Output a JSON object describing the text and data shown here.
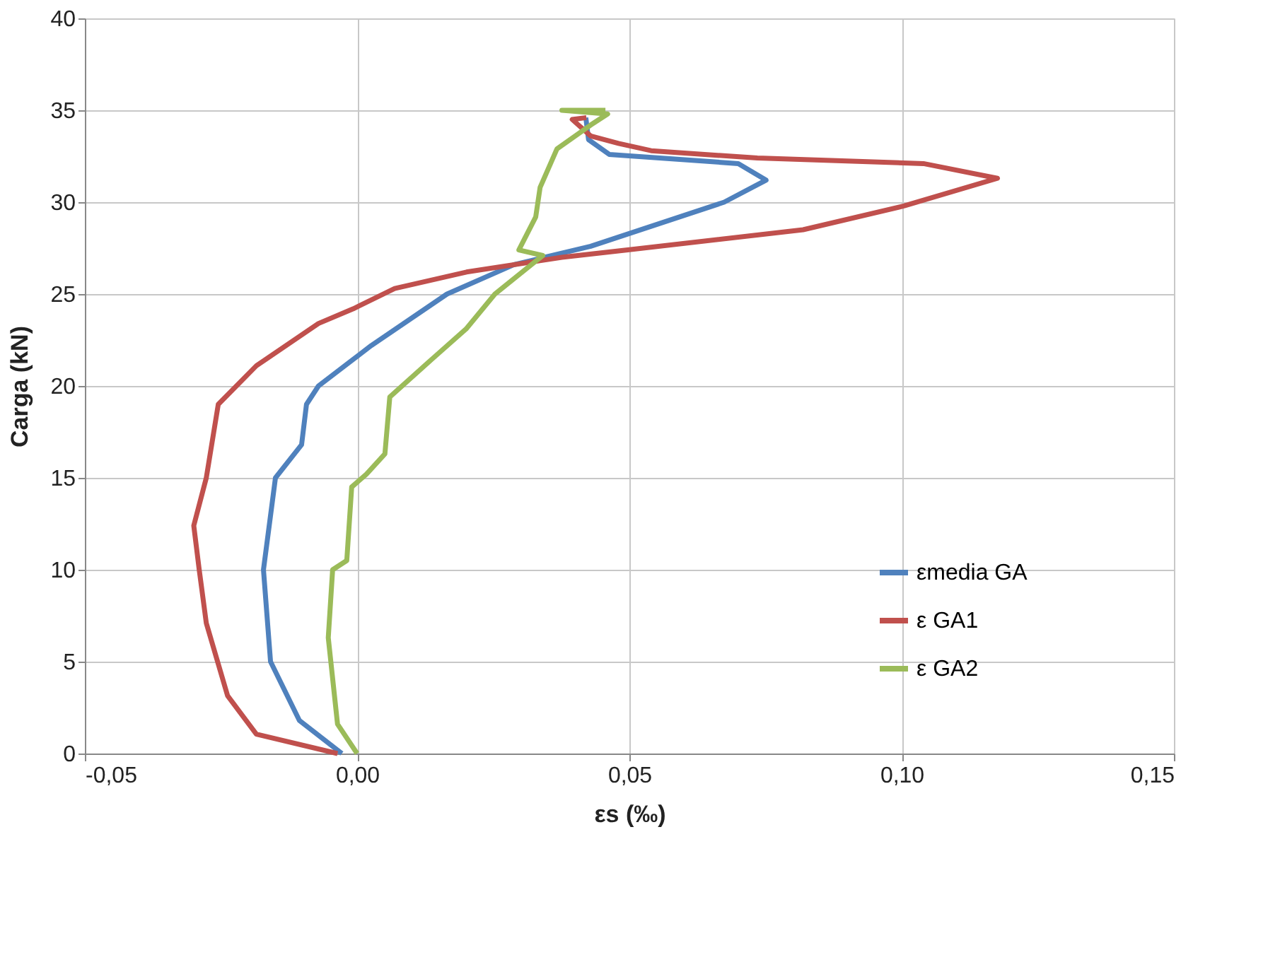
{
  "chart_data": {
    "type": "line",
    "xlabel": "εs  (‰)",
    "ylabel": "Carga (kN)",
    "xlim": [
      -0.05,
      0.15
    ],
    "xticks": [
      {
        "value": -0.05,
        "label": "-0,05"
      },
      {
        "value": 0,
        "label": "0,00"
      },
      {
        "value": 0.05,
        "label": "0,05"
      },
      {
        "value": 0.1,
        "label": "0,10"
      },
      {
        "value": 0.15,
        "label": "0,15"
      }
    ],
    "ylim": [
      0,
      40
    ],
    "yticks": [
      0,
      5,
      10,
      15,
      20,
      25,
      30,
      35,
      40
    ],
    "grid": true,
    "legend": "right",
    "marker": "none",
    "line_style": "solid",
    "series": [
      {
        "name": "εmedia GA",
        "color": "#4f81bd",
        "x": [
          -0.0028,
          -0.0106,
          -0.0159,
          -0.0172,
          -0.015,
          -0.0102,
          -0.0093,
          -0.0071,
          0.0026,
          0.0165,
          0.0288,
          0.0429,
          0.0674,
          0.0751,
          0.07,
          0.0463,
          0.0425,
          0.042
        ],
        "values": [
          0,
          1.8,
          5.0,
          10,
          15,
          16.8,
          19,
          20,
          22.2,
          25,
          26.6,
          27.6,
          30,
          31.2,
          32.1,
          32.6,
          33.4,
          34.6
        ]
      },
      {
        "name": "ε GA1",
        "color": "#c0504d",
        "x": [
          -0.0036,
          -0.0185,
          -0.0238,
          -0.0277,
          -0.029,
          -0.03,
          -0.0277,
          -0.0255,
          -0.0185,
          -0.0071,
          -0.0007,
          0.0069,
          0.0201,
          0.0376,
          0.0497,
          0.0819,
          0.1005,
          0.1176,
          0.104,
          0.0735,
          0.054,
          0.048,
          0.0429,
          0.0395,
          0.0421
        ],
        "values": [
          0,
          1.05,
          3.15,
          7.1,
          10,
          12.4,
          15,
          19,
          21.1,
          23.4,
          24.2,
          25.3,
          26.2,
          27,
          27.4,
          28.5,
          29.8,
          31.3,
          32.1,
          32.4,
          32.8,
          33.2,
          33.6,
          34.5,
          34.6
        ]
      },
      {
        "name": "ε GA2",
        "color": "#9bbb59",
        "x": [
          0.0,
          -0.0036,
          -0.0053,
          -0.0045,
          -0.0019,
          -0.001,
          0.0017,
          0.0051,
          0.006,
          0.0139,
          0.02,
          0.0253,
          0.0341,
          0.0297,
          0.0328,
          0.0336,
          0.0367,
          0.0429,
          0.046,
          0.0376,
          0.0456
        ],
        "values": [
          0,
          1.6,
          6.3,
          10,
          10.5,
          14.5,
          15.2,
          16.3,
          19.4,
          21.5,
          23.1,
          25,
          27.1,
          27.4,
          29.2,
          30.8,
          32.9,
          34.2,
          34.8,
          35.0,
          35.0
        ]
      }
    ]
  }
}
